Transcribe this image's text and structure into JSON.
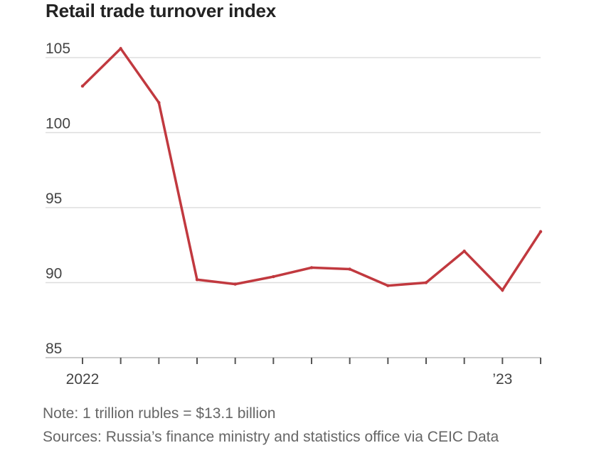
{
  "chart_data": {
    "type": "line",
    "title": "Retail trade turnover index",
    "xlabel": "",
    "ylabel": "",
    "ylim": [
      85,
      106
    ],
    "yticks": [
      85,
      90,
      95,
      100,
      105
    ],
    "x_tick_labels": [
      {
        "index": 0,
        "label": "2022"
      },
      {
        "index": 11,
        "label": "’23"
      }
    ],
    "series": [
      {
        "name": "Retail trade turnover index",
        "color": "#c1393f",
        "values": [
          103.1,
          105.6,
          102.0,
          90.2,
          89.9,
          90.4,
          91.0,
          90.9,
          89.8,
          90.0,
          92.1,
          89.5,
          93.4
        ]
      }
    ]
  },
  "footer": {
    "note": "Note: 1 trillion rubles = $13.1 billion",
    "sources": "Sources: Russia’s finance ministry and statistics office via CEIC Data"
  }
}
